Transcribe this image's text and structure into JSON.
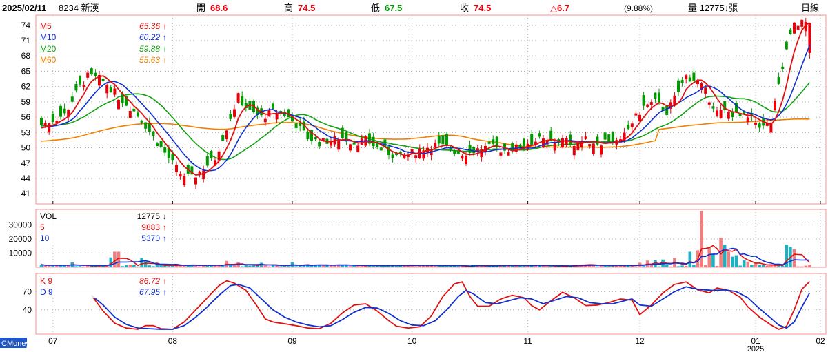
{
  "header": {
    "date": "2025/02/11",
    "stock": "8234 新漢",
    "open_label": "開",
    "open": "68.6",
    "high_label": "高",
    "high": "74.5",
    "low_label": "低",
    "low": "67.5",
    "close_label": "收",
    "close": "74.5",
    "change": "△6.7",
    "change_pct": "(9.88%)",
    "volume_label": "量 12775↓張",
    "period": "日線"
  },
  "logo": "CMoney",
  "colors": {
    "up": "#e8000b",
    "down": "#009a00",
    "ma5": "#e01010",
    "ma10": "#1030d0",
    "ma20": "#10a010",
    "ma60": "#f08000",
    "vol_up": "#f08080",
    "vol_down": "#20b0c0",
    "k": "#e01010",
    "d": "#1030d0",
    "border": "#ff9090",
    "grid": "#b0b0b0"
  },
  "chart_data": [
    {
      "type": "candlestick",
      "panel": "price",
      "ylim": [
        39,
        76
      ],
      "yticks": [
        41,
        44,
        47,
        50,
        53,
        56,
        59,
        62,
        65,
        68,
        71,
        74
      ],
      "grid": true,
      "legend": [
        {
          "key": "ma5",
          "name": "M5",
          "value": "65.36",
          "dir": "↑"
        },
        {
          "key": "ma10",
          "name": "M10",
          "value": "60.22",
          "dir": "↑"
        },
        {
          "key": "ma20",
          "name": "M20",
          "value": "59.88",
          "dir": "↑"
        },
        {
          "key": "ma60",
          "name": "M60",
          "value": "55.63",
          "dir": "↑"
        }
      ],
      "ohlc_anchors": [
        [
          0,
          54.5
        ],
        [
          3,
          55.5
        ],
        [
          6,
          56.5
        ],
        [
          10,
          62
        ],
        [
          12,
          64
        ],
        [
          15,
          63.5
        ],
        [
          17,
          62.5
        ],
        [
          20,
          60
        ],
        [
          23,
          58
        ],
        [
          26,
          55.5
        ],
        [
          30,
          51
        ],
        [
          33,
          48
        ],
        [
          36,
          45
        ],
        [
          39,
          44
        ],
        [
          42,
          46
        ],
        [
          45,
          48
        ],
        [
          48,
          54
        ],
        [
          51,
          60
        ],
        [
          54,
          57
        ],
        [
          57,
          56
        ],
        [
          60,
          57
        ],
        [
          63,
          56.5
        ],
        [
          66,
          54.5
        ],
        [
          69,
          52
        ],
        [
          72,
          51
        ],
        [
          75,
          51.5
        ],
        [
          78,
          52
        ],
        [
          81,
          51
        ],
        [
          84,
          51.5
        ],
        [
          87,
          50
        ],
        [
          90,
          49
        ],
        [
          93,
          48
        ],
        [
          96,
          49
        ],
        [
          99,
          50
        ],
        [
          102,
          50.5
        ],
        [
          105,
          50
        ],
        [
          108,
          49
        ],
        [
          111,
          49
        ],
        [
          114,
          50
        ],
        [
          117,
          50
        ],
        [
          120,
          49.5
        ],
        [
          123,
          50
        ],
        [
          126,
          51
        ],
        [
          129,
          51.5
        ],
        [
          132,
          51
        ],
        [
          135,
          51.5
        ],
        [
          138,
          51
        ],
        [
          141,
          51.5
        ],
        [
          144,
          51
        ],
        [
          147,
          51.5
        ],
        [
          150,
          51
        ],
        [
          153,
          55
        ],
        [
          156,
          58
        ],
        [
          159,
          59
        ],
        [
          162,
          57
        ],
        [
          165,
          61
        ],
        [
          167,
          64
        ],
        [
          170,
          63
        ],
        [
          172,
          61
        ],
        [
          175,
          57
        ],
        [
          178,
          57
        ],
        [
          181,
          56
        ],
        [
          184,
          55.5
        ],
        [
          187,
          54
        ],
        [
          189,
          55
        ],
        [
          191,
          62
        ],
        [
          193,
          69
        ],
        [
          195,
          74.5
        ]
      ],
      "ma_start_levels": {
        "ma5": 53.9,
        "ma10": 54.0,
        "ma20": 54.3,
        "ma60": 51.3
      },
      "ma60_tail": [
        [
          160,
          53.6
        ],
        [
          167,
          54.3
        ],
        [
          175,
          54.9
        ],
        [
          181,
          55.0
        ],
        [
          195,
          55.63
        ]
      ],
      "x_ticks": [
        {
          "label": "07",
          "index": 3
        },
        {
          "label": "08",
          "index": 34
        },
        {
          "label": "09",
          "index": 65
        },
        {
          "label": "10",
          "index": 96
        },
        {
          "label": "11",
          "index": 126
        },
        {
          "label": "12",
          "index": 155
        },
        {
          "label": "01",
          "index": 185
        },
        {
          "label": "02",
          "index": 206
        }
      ],
      "year_label": {
        "text": "2025",
        "index": 185
      }
    },
    {
      "type": "bar",
      "panel": "volume",
      "ylim": [
        0,
        41000
      ],
      "yticks": [
        10000,
        20000,
        30000
      ],
      "legend": [
        {
          "key": "k_vol",
          "name": "VOL",
          "value": "12775",
          "dir": "↓"
        },
        {
          "key": "ma5",
          "name": "5",
          "value": "9883",
          "dir": "↑"
        },
        {
          "key": "ma10",
          "name": "10",
          "value": "5370",
          "dir": "↑"
        }
      ],
      "spikes": [
        [
          8,
          3500
        ],
        [
          18,
          7000
        ],
        [
          19,
          11000
        ],
        [
          20,
          11000
        ],
        [
          26,
          6500
        ],
        [
          27,
          4000
        ],
        [
          48,
          4500
        ],
        [
          51,
          3500
        ],
        [
          57,
          3200
        ],
        [
          65,
          3500
        ],
        [
          69,
          2000
        ],
        [
          96,
          2000
        ],
        [
          123,
          1500
        ],
        [
          155,
          3200
        ],
        [
          157,
          4800
        ],
        [
          159,
          5000
        ],
        [
          161,
          5500
        ],
        [
          164,
          6500
        ],
        [
          168,
          11000
        ],
        [
          170,
          12000
        ],
        [
          171,
          40000
        ],
        [
          173,
          14000
        ],
        [
          174,
          9500
        ],
        [
          176,
          21000
        ],
        [
          177,
          16000
        ],
        [
          178,
          11000
        ],
        [
          179,
          7500
        ],
        [
          180,
          8500
        ],
        [
          182,
          5000
        ],
        [
          183,
          4000
        ],
        [
          185,
          3000
        ],
        [
          193,
          16000
        ],
        [
          194,
          14500
        ],
        [
          195,
          12775
        ]
      ]
    },
    {
      "type": "line",
      "panel": "kd",
      "ylim": [
        0,
        100
      ],
      "yticks": [
        40,
        70
      ],
      "legend": [
        {
          "key": "k",
          "name": "K 9",
          "value": "86.72",
          "dir": "↑"
        },
        {
          "key": "d",
          "name": "D 9",
          "value": "67.95",
          "dir": "↑"
        }
      ],
      "k_anchors": [
        [
          13,
          64
        ],
        [
          16,
          38
        ],
        [
          19,
          18
        ],
        [
          22,
          10
        ],
        [
          25,
          8
        ],
        [
          27,
          14
        ],
        [
          29,
          14
        ],
        [
          31,
          9
        ],
        [
          34,
          8
        ],
        [
          37,
          20
        ],
        [
          40,
          40
        ],
        [
          43,
          60
        ],
        [
          46,
          80
        ],
        [
          48,
          88
        ],
        [
          50,
          84
        ],
        [
          53,
          72
        ],
        [
          56,
          45
        ],
        [
          58,
          25
        ],
        [
          60,
          20
        ],
        [
          63,
          17
        ],
        [
          66,
          14
        ],
        [
          69,
          10
        ],
        [
          72,
          9
        ],
        [
          75,
          18
        ],
        [
          78,
          35
        ],
        [
          81,
          48
        ],
        [
          84,
          50
        ],
        [
          87,
          38
        ],
        [
          90,
          22
        ],
        [
          92,
          13
        ],
        [
          95,
          10
        ],
        [
          98,
          12
        ],
        [
          101,
          30
        ],
        [
          104,
          62
        ],
        [
          107,
          83
        ],
        [
          109,
          86
        ],
        [
          111,
          62
        ],
        [
          113,
          46
        ],
        [
          116,
          46
        ],
        [
          119,
          58
        ],
        [
          122,
          64
        ],
        [
          125,
          60
        ],
        [
          127,
          47
        ],
        [
          129,
          40
        ],
        [
          132,
          55
        ],
        [
          135,
          69
        ],
        [
          138,
          60
        ],
        [
          141,
          47
        ],
        [
          144,
          48
        ],
        [
          147,
          52
        ],
        [
          150,
          58
        ],
        [
          153,
          56
        ],
        [
          155,
          32
        ],
        [
          158,
          48
        ],
        [
          161,
          68
        ],
        [
          164,
          82
        ],
        [
          167,
          86
        ],
        [
          170,
          73
        ],
        [
          173,
          68
        ],
        [
          175,
          76
        ],
        [
          178,
          72
        ],
        [
          181,
          61
        ],
        [
          183,
          45
        ],
        [
          186,
          28
        ],
        [
          189,
          15
        ],
        [
          191,
          8
        ],
        [
          193,
          13
        ],
        [
          195,
          40
        ],
        [
          197,
          74
        ],
        [
          199,
          86.72
        ]
      ],
      "d_anchors": [
        [
          13,
          64
        ],
        [
          16,
          48
        ],
        [
          19,
          28
        ],
        [
          22,
          16
        ],
        [
          25,
          10
        ],
        [
          28,
          9
        ],
        [
          31,
          8
        ],
        [
          34,
          8
        ],
        [
          37,
          14
        ],
        [
          40,
          28
        ],
        [
          43,
          45
        ],
        [
          46,
          64
        ],
        [
          49,
          80
        ],
        [
          51,
          82
        ],
        [
          54,
          76
        ],
        [
          57,
          58
        ],
        [
          60,
          40
        ],
        [
          63,
          28
        ],
        [
          66,
          20
        ],
        [
          69,
          15
        ],
        [
          72,
          12
        ],
        [
          75,
          14
        ],
        [
          78,
          24
        ],
        [
          81,
          36
        ],
        [
          84,
          44
        ],
        [
          87,
          43
        ],
        [
          90,
          34
        ],
        [
          93,
          22
        ],
        [
          96,
          15
        ],
        [
          99,
          14
        ],
        [
          102,
          22
        ],
        [
          105,
          40
        ],
        [
          108,
          62
        ],
        [
          110,
          72
        ],
        [
          112,
          66
        ],
        [
          115,
          52
        ],
        [
          118,
          50
        ],
        [
          121,
          55
        ],
        [
          124,
          60
        ],
        [
          127,
          58
        ],
        [
          130,
          50
        ],
        [
          133,
          56
        ],
        [
          136,
          62
        ],
        [
          139,
          60
        ],
        [
          142,
          52
        ],
        [
          145,
          50
        ],
        [
          148,
          50
        ],
        [
          151,
          55
        ],
        [
          153,
          58
        ],
        [
          155,
          48
        ],
        [
          158,
          46
        ],
        [
          161,
          58
        ],
        [
          164,
          70
        ],
        [
          167,
          78
        ],
        [
          170,
          74
        ],
        [
          174,
          72
        ],
        [
          177,
          73
        ],
        [
          180,
          70
        ],
        [
          183,
          60
        ],
        [
          186,
          42
        ],
        [
          189,
          26
        ],
        [
          191,
          15
        ],
        [
          193,
          10
        ],
        [
          195,
          20
        ],
        [
          197,
          45
        ],
        [
          199,
          67.95
        ]
      ]
    }
  ]
}
